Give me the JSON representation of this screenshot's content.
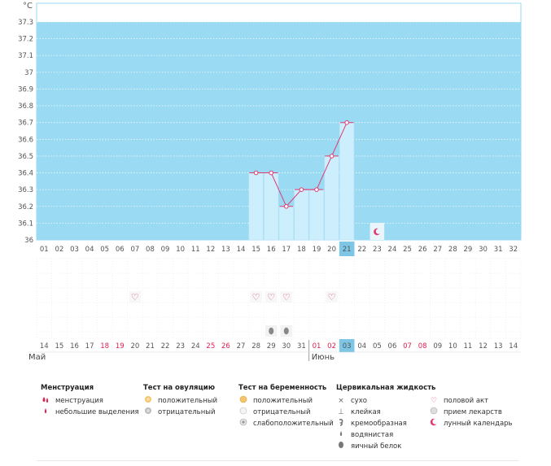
{
  "chart_data": {
    "type": "line",
    "ylabel": "°C",
    "ylim": [
      36,
      37.3
    ],
    "yticks": [
      "37.3",
      "37.2",
      "37.1",
      "37",
      "36.9",
      "36.8",
      "36.7",
      "36.6",
      "36.5",
      "36.4",
      "36.3",
      "36.2",
      "36.1",
      "36"
    ],
    "cycle_days": [
      "01",
      "02",
      "03",
      "04",
      "05",
      "06",
      "07",
      "08",
      "09",
      "10",
      "11",
      "12",
      "13",
      "14",
      "15",
      "16",
      "17",
      "18",
      "19",
      "20",
      "21",
      "22",
      "23",
      "24",
      "25",
      "26",
      "27",
      "28",
      "29",
      "30",
      "31",
      "32"
    ],
    "current_day": "21",
    "series": [
      {
        "points": [
          {
            "day": 15,
            "value": 36.4
          },
          {
            "day": 16,
            "value": 36.4
          },
          {
            "day": 17,
            "value": 36.2
          },
          {
            "day": 18,
            "value": 36.3
          },
          {
            "day": 19,
            "value": 36.3
          },
          {
            "day": 20,
            "value": 36.5
          },
          {
            "day": 21,
            "value": 36.7
          }
        ]
      }
    ],
    "moon_day": 23,
    "intercourse_days": [
      7,
      15,
      16,
      17,
      20
    ],
    "egg_white_days": [
      16,
      17
    ],
    "dates": [
      "14",
      "15",
      "16",
      "17",
      "18",
      "19",
      "20",
      "21",
      "22",
      "23",
      "24",
      "25",
      "26",
      "27",
      "28",
      "29",
      "30",
      "31",
      "01",
      "02",
      "03",
      "04",
      "05",
      "06",
      "07",
      "08",
      "09",
      "10",
      "11",
      "12",
      "13",
      "14"
    ],
    "red_date_indexes": [
      4,
      5,
      11,
      12,
      18,
      19,
      24,
      25
    ],
    "today_date_index": 20,
    "month_labels": [
      {
        "label": "Май",
        "day": 1
      },
      {
        "label": "Июнь",
        "day": 19
      }
    ]
  },
  "colors": {
    "plot_bg": "#9adaf2",
    "bar_fill": "#cdeefc",
    "line": "#e03a72",
    "red_text": "#e02050",
    "highlight": "#7dc6e6",
    "grid_text": "#555555",
    "inactive_bg": "#ffffff"
  },
  "legend": {
    "menstruation": {
      "title": "Менструация",
      "items": [
        {
          "icon": "menstruation-drops-icon",
          "label": "менструация"
        },
        {
          "icon": "spotting-drop-icon",
          "label": "небольшие выделения"
        }
      ]
    },
    "ovulation_test": {
      "title": "Тест на овуляцию",
      "items": [
        {
          "icon": "ovulation-positive-icon",
          "label": "положительный"
        },
        {
          "icon": "ovulation-negative-icon",
          "label": "отрицательный"
        }
      ]
    },
    "pregnancy_test": {
      "title": "Тест на беременность",
      "items": [
        {
          "icon": "pregnancy-positive-icon",
          "label": "положительный"
        },
        {
          "icon": "pregnancy-negative-icon",
          "label": "отрицательный"
        },
        {
          "icon": "pregnancy-weak-icon",
          "label": "слабоположительный"
        }
      ]
    },
    "cervical_fluid": {
      "title": "Цервикальная жидкость",
      "items": [
        {
          "icon": "dry-icon",
          "label": "сухо"
        },
        {
          "icon": "sticky-icon",
          "label": "клейкая"
        },
        {
          "icon": "creamy-icon",
          "label": "кремообразная"
        },
        {
          "icon": "watery-icon",
          "label": "водянистая"
        },
        {
          "icon": "egg-white-icon",
          "label": "яичный белок"
        }
      ]
    },
    "other": {
      "items": [
        {
          "icon": "heart-icon",
          "label": "половой акт"
        },
        {
          "icon": "pill-icon",
          "label": "прием лекарств"
        },
        {
          "icon": "moon-icon",
          "label": "лунный календарь"
        }
      ]
    }
  }
}
